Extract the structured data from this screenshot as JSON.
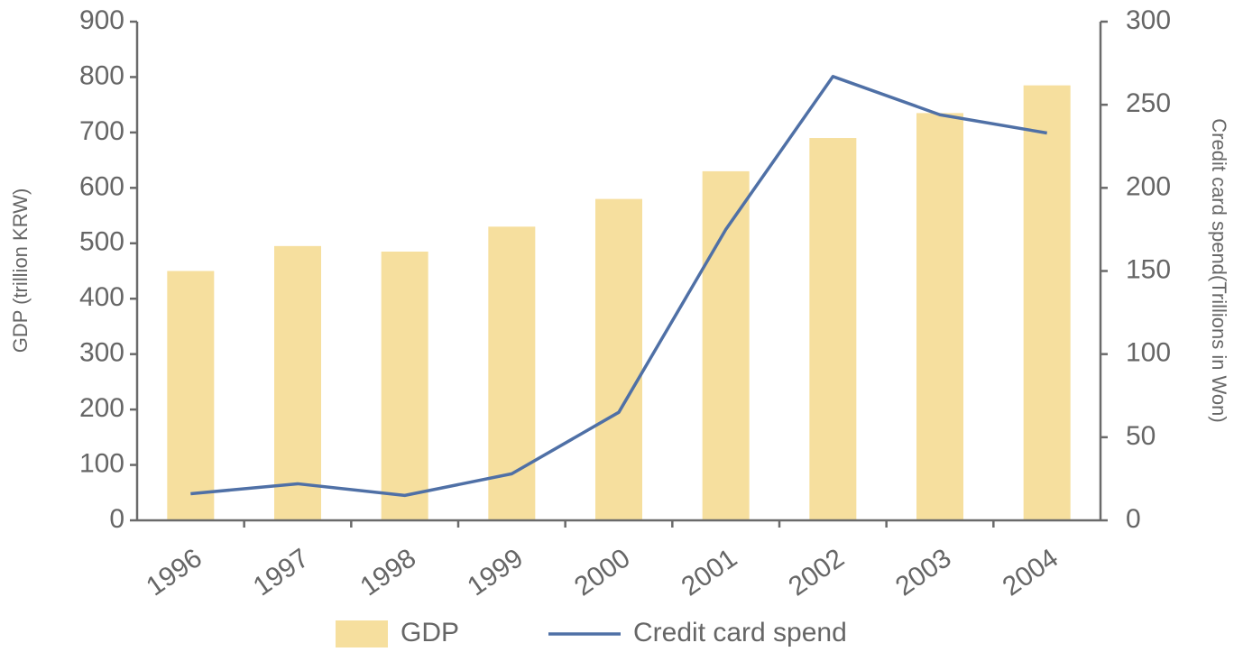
{
  "chart_data": {
    "type": "bar-line",
    "categories": [
      "1996",
      "1997",
      "1998",
      "1999",
      "2000",
      "2001",
      "2002",
      "2003",
      "2004"
    ],
    "series": [
      {
        "name": "GDP",
        "type": "bar",
        "color": "#f6df9e",
        "values": [
          450,
          495,
          485,
          530,
          580,
          630,
          690,
          735,
          785
        ]
      },
      {
        "name": "Credit card spend",
        "type": "line",
        "axis": "y2",
        "color": "#4f70a6",
        "values": [
          16,
          22,
          15,
          28,
          65,
          175,
          267,
          244,
          233
        ]
      }
    ],
    "ylabel": "GDP (trillion KRW)",
    "y2label": "Credit card spend(Trillions in Won)",
    "ylim": [
      0,
      900
    ],
    "yticks": [
      0,
      100,
      200,
      300,
      400,
      500,
      600,
      700,
      800,
      900
    ],
    "y2lim": [
      0,
      300
    ],
    "y2ticks": [
      0,
      50,
      100,
      150,
      200,
      250,
      300
    ],
    "legend": "bottom"
  }
}
